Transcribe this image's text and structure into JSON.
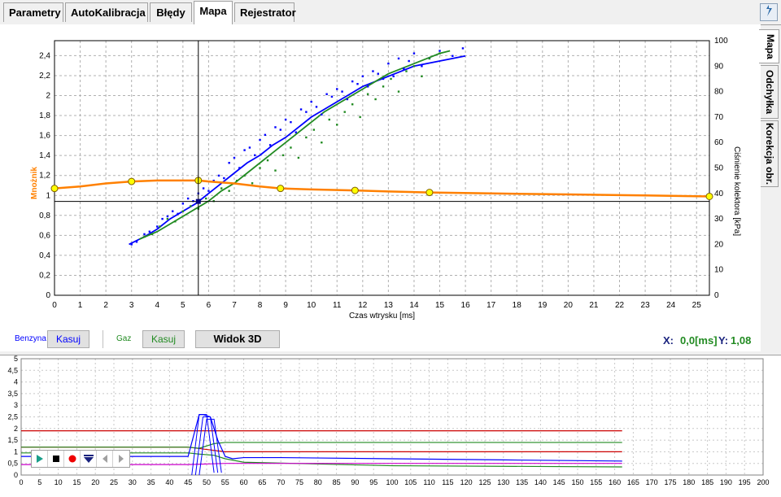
{
  "tabs": [
    {
      "label": "Parametry",
      "active": false
    },
    {
      "label": "AutoKalibracja",
      "active": false
    },
    {
      "label": "Błędy",
      "active": false
    },
    {
      "label": "Mapa",
      "active": true
    },
    {
      "label": "Rejestrator",
      "active": false
    }
  ],
  "side_tabs": [
    {
      "label": "Mapa",
      "active": true
    },
    {
      "label": "Odchyłka",
      "active": false
    },
    {
      "label": "Korekcja obr.",
      "active": false
    }
  ],
  "controls": {
    "benzyna_label": "Benzyna",
    "benzyna_button": "Kasuj",
    "gaz_label": "Gaz",
    "gaz_button": "Kasuj",
    "view3d_button": "Widok 3D",
    "x_label": "X:",
    "x_value": "0,0[ms]",
    "y_label": "Y:",
    "y_value": "1,08"
  },
  "colors": {
    "benzyna": "#0000ff",
    "gaz": "#228b22",
    "multiplier": "#ff8000",
    "point_fill": "#ffff00",
    "cursor": "#000000"
  },
  "icons": {
    "help": "help-icon",
    "player": [
      "play-icon",
      "stop-icon",
      "record-icon",
      "down-arrow-icon",
      "prev-icon",
      "next-icon"
    ]
  },
  "chart_data": [
    {
      "type": "scatter",
      "xlabel": "Czas wtrysku [ms]",
      "ylabel": "Mnożnik",
      "y2label": "Ciśnienie kolektora [kPa]",
      "xlim": [
        0,
        25.5
      ],
      "ylim": [
        0,
        2.55
      ],
      "y2lim": [
        0,
        100
      ],
      "x_ticks": [
        0,
        1,
        2,
        3,
        4,
        5,
        6,
        7,
        8,
        9,
        10,
        11,
        12,
        13,
        14,
        15,
        16,
        17,
        18,
        19,
        20,
        21,
        22,
        23,
        24,
        25
      ],
      "y_ticks": [
        "0",
        "0,2",
        "0,4",
        "0,6",
        "0,8",
        "1",
        "1,2",
        "1,4",
        "1,6",
        "1,8",
        "2",
        "2,2",
        "2,4"
      ],
      "y_tick_values": [
        0,
        0.2,
        0.4,
        0.6,
        0.8,
        1.0,
        1.2,
        1.4,
        1.6,
        1.8,
        2.0,
        2.2,
        2.4
      ],
      "y2_ticks": [
        0,
        10,
        20,
        30,
        40,
        50,
        60,
        70,
        80,
        90,
        100
      ],
      "grid": true,
      "cursor": {
        "x": 5.6,
        "y": 0.94
      },
      "series": [
        {
          "name": "Benzyna",
          "kind": "line",
          "axis": "y2",
          "x": [
            2.9,
            3.5,
            4.0,
            4.5,
            5.0,
            5.5,
            6.0,
            6.5,
            7.0,
            7.5,
            8.0,
            8.5,
            9.0,
            9.5,
            10.0,
            10.5,
            11.0,
            11.5,
            12.0,
            12.5,
            13.0,
            13.5,
            14.0,
            14.5,
            15.0,
            15.5,
            16.0
          ],
          "y": [
            20,
            23,
            26,
            30,
            33,
            36,
            40,
            44,
            48,
            52,
            55,
            59,
            62,
            66,
            70,
            73,
            76,
            79,
            82,
            84,
            86,
            88,
            90,
            91,
            92,
            93,
            94
          ]
        },
        {
          "name": "Gaz",
          "kind": "line",
          "axis": "y2",
          "x": [
            3.3,
            4.0,
            4.5,
            5.0,
            5.5,
            6.0,
            6.5,
            7.0,
            7.5,
            8.0,
            8.5,
            9.0,
            9.5,
            10.0,
            10.5,
            11.0,
            11.5,
            12.0,
            12.5,
            13.0,
            13.5,
            14.0,
            14.5,
            15.0,
            15.4
          ],
          "y": [
            22,
            25,
            28,
            31,
            34,
            37,
            41,
            44,
            48,
            52,
            56,
            60,
            64,
            68,
            72,
            75,
            78,
            81,
            84,
            87,
            89,
            91,
            93,
            95,
            96
          ]
        },
        {
          "name": "Benzyna-punkty",
          "kind": "scatter",
          "axis": "y2",
          "x": [
            3.0,
            3.2,
            3.5,
            3.7,
            4.0,
            4.2,
            4.4,
            4.6,
            4.8,
            5.0,
            5.2,
            5.4,
            5.6,
            5.8,
            6.0,
            6.2,
            6.4,
            6.6,
            6.8,
            7.0,
            7.2,
            7.4,
            7.6,
            7.8,
            8.0,
            8.2,
            8.4,
            8.6,
            8.8,
            9.0,
            9.2,
            9.4,
            9.6,
            9.8,
            10.0,
            10.2,
            10.4,
            10.6,
            10.8,
            11.0,
            11.2,
            11.4,
            11.6,
            11.8,
            12.0,
            12.2,
            12.4,
            12.6,
            12.8,
            13.0,
            13.2,
            13.4,
            13.6,
            13.8,
            14.0,
            14.3,
            14.6,
            15.0,
            15.5,
            15.9
          ],
          "y": [
            20,
            21,
            24,
            25,
            27,
            30,
            31,
            33,
            32,
            36,
            38,
            37,
            40,
            42,
            41,
            45,
            47,
            46,
            52,
            54,
            50,
            57,
            58,
            55,
            61,
            63,
            59,
            66,
            65,
            69,
            68,
            64,
            73,
            72,
            76,
            74,
            71,
            79,
            78,
            81,
            80,
            77,
            84,
            83,
            86,
            82,
            88,
            87,
            85,
            91,
            86,
            93,
            89,
            92,
            95,
            90,
            93,
            96,
            94,
            97
          ]
        },
        {
          "name": "Gaz-punkty",
          "kind": "scatter",
          "axis": "y2",
          "x": [
            3.5,
            3.8,
            4.1,
            4.4,
            4.7,
            5.0,
            5.3,
            5.6,
            5.9,
            6.2,
            6.5,
            6.8,
            7.1,
            7.4,
            7.7,
            8.0,
            8.3,
            8.6,
            8.9,
            9.2,
            9.5,
            9.8,
            10.1,
            10.4,
            10.7,
            11.0,
            11.3,
            11.6,
            11.9,
            12.2,
            12.5,
            12.8,
            13.1,
            13.4,
            13.7,
            14.0,
            14.3,
            14.6,
            15.0
          ],
          "y": [
            23,
            24,
            27,
            30,
            29,
            33,
            35,
            34,
            38,
            37,
            42,
            41,
            45,
            47,
            44,
            50,
            53,
            49,
            55,
            58,
            54,
            62,
            65,
            60,
            69,
            67,
            72,
            75,
            70,
            79,
            77,
            82,
            85,
            80,
            88,
            90,
            86,
            93,
            95
          ]
        },
        {
          "name": "Mnożnik",
          "kind": "line-markers",
          "axis": "y",
          "x": [
            0,
            1,
            2,
            3,
            4,
            5,
            5.6,
            6,
            7,
            8,
            8.8,
            10,
            11.7,
            13,
            14.6,
            17,
            20,
            23,
            25.5
          ],
          "y": [
            1.07,
            1.09,
            1.12,
            1.14,
            1.15,
            1.15,
            1.15,
            1.14,
            1.12,
            1.09,
            1.07,
            1.06,
            1.05,
            1.04,
            1.03,
            1.02,
            1.01,
            1.0,
            0.99
          ],
          "markers_x": [
            0,
            3,
            5.6,
            8.8,
            11.7,
            14.6,
            25.5
          ],
          "markers_y": [
            1.07,
            1.14,
            1.15,
            1.07,
            1.05,
            1.03,
            0.99
          ]
        }
      ]
    },
    {
      "type": "line",
      "xlim": [
        0,
        200
      ],
      "ylim": [
        0,
        5
      ],
      "x_ticks": [
        0,
        5,
        10,
        15,
        20,
        25,
        30,
        35,
        40,
        45,
        50,
        55,
        60,
        65,
        70,
        75,
        80,
        85,
        90,
        95,
        100,
        105,
        110,
        115,
        120,
        125,
        130,
        135,
        140,
        145,
        150,
        155,
        160,
        165,
        170,
        175,
        180,
        185,
        190,
        195,
        200
      ],
      "y_ticks": [
        "0",
        "0,5",
        "1",
        "1,5",
        "2",
        "2,5",
        "3",
        "3,5",
        "4",
        "4,5",
        "5"
      ],
      "y_tick_values": [
        0,
        0.5,
        1,
        1.5,
        2,
        2.5,
        3,
        3.5,
        4,
        4.5,
        5
      ],
      "grid": true,
      "series": [
        {
          "name": "czerwona-1",
          "color": "#cc0000",
          "x": [
            0,
            162
          ],
          "y": [
            1.9,
            1.9
          ]
        },
        {
          "name": "czerwona-2",
          "color": "#cc0000",
          "x": [
            0,
            45,
            50,
            55,
            60,
            162
          ],
          "y": [
            1.2,
            1.2,
            1.1,
            1.0,
            1.0,
            1.0
          ]
        },
        {
          "name": "zielona-1",
          "color": "#228b22",
          "x": [
            0,
            45,
            48,
            52,
            55,
            60,
            162
          ],
          "y": [
            1.2,
            1.2,
            1.15,
            1.35,
            1.4,
            1.4,
            1.4
          ]
        },
        {
          "name": "zielona-2",
          "color": "#228b22",
          "x": [
            0,
            45,
            48,
            52,
            55,
            60,
            100,
            162
          ],
          "y": [
            0.95,
            0.95,
            0.9,
            0.85,
            0.7,
            0.55,
            0.4,
            0.35
          ]
        },
        {
          "name": "niebieska",
          "color": "#0000ff",
          "x": [
            0,
            45,
            48,
            49,
            51,
            53,
            55,
            57,
            60,
            70,
            100,
            130,
            162
          ],
          "y": [
            0.8,
            0.8,
            2.6,
            2.6,
            2.5,
            1.5,
            0.8,
            0.7,
            0.75,
            0.75,
            0.7,
            0.65,
            0.6
          ]
        },
        {
          "name": "fioletowa",
          "color": "#cc00cc",
          "x": [
            0,
            45,
            55,
            162
          ],
          "y": [
            0.45,
            0.45,
            0.5,
            0.5
          ]
        }
      ]
    }
  ]
}
